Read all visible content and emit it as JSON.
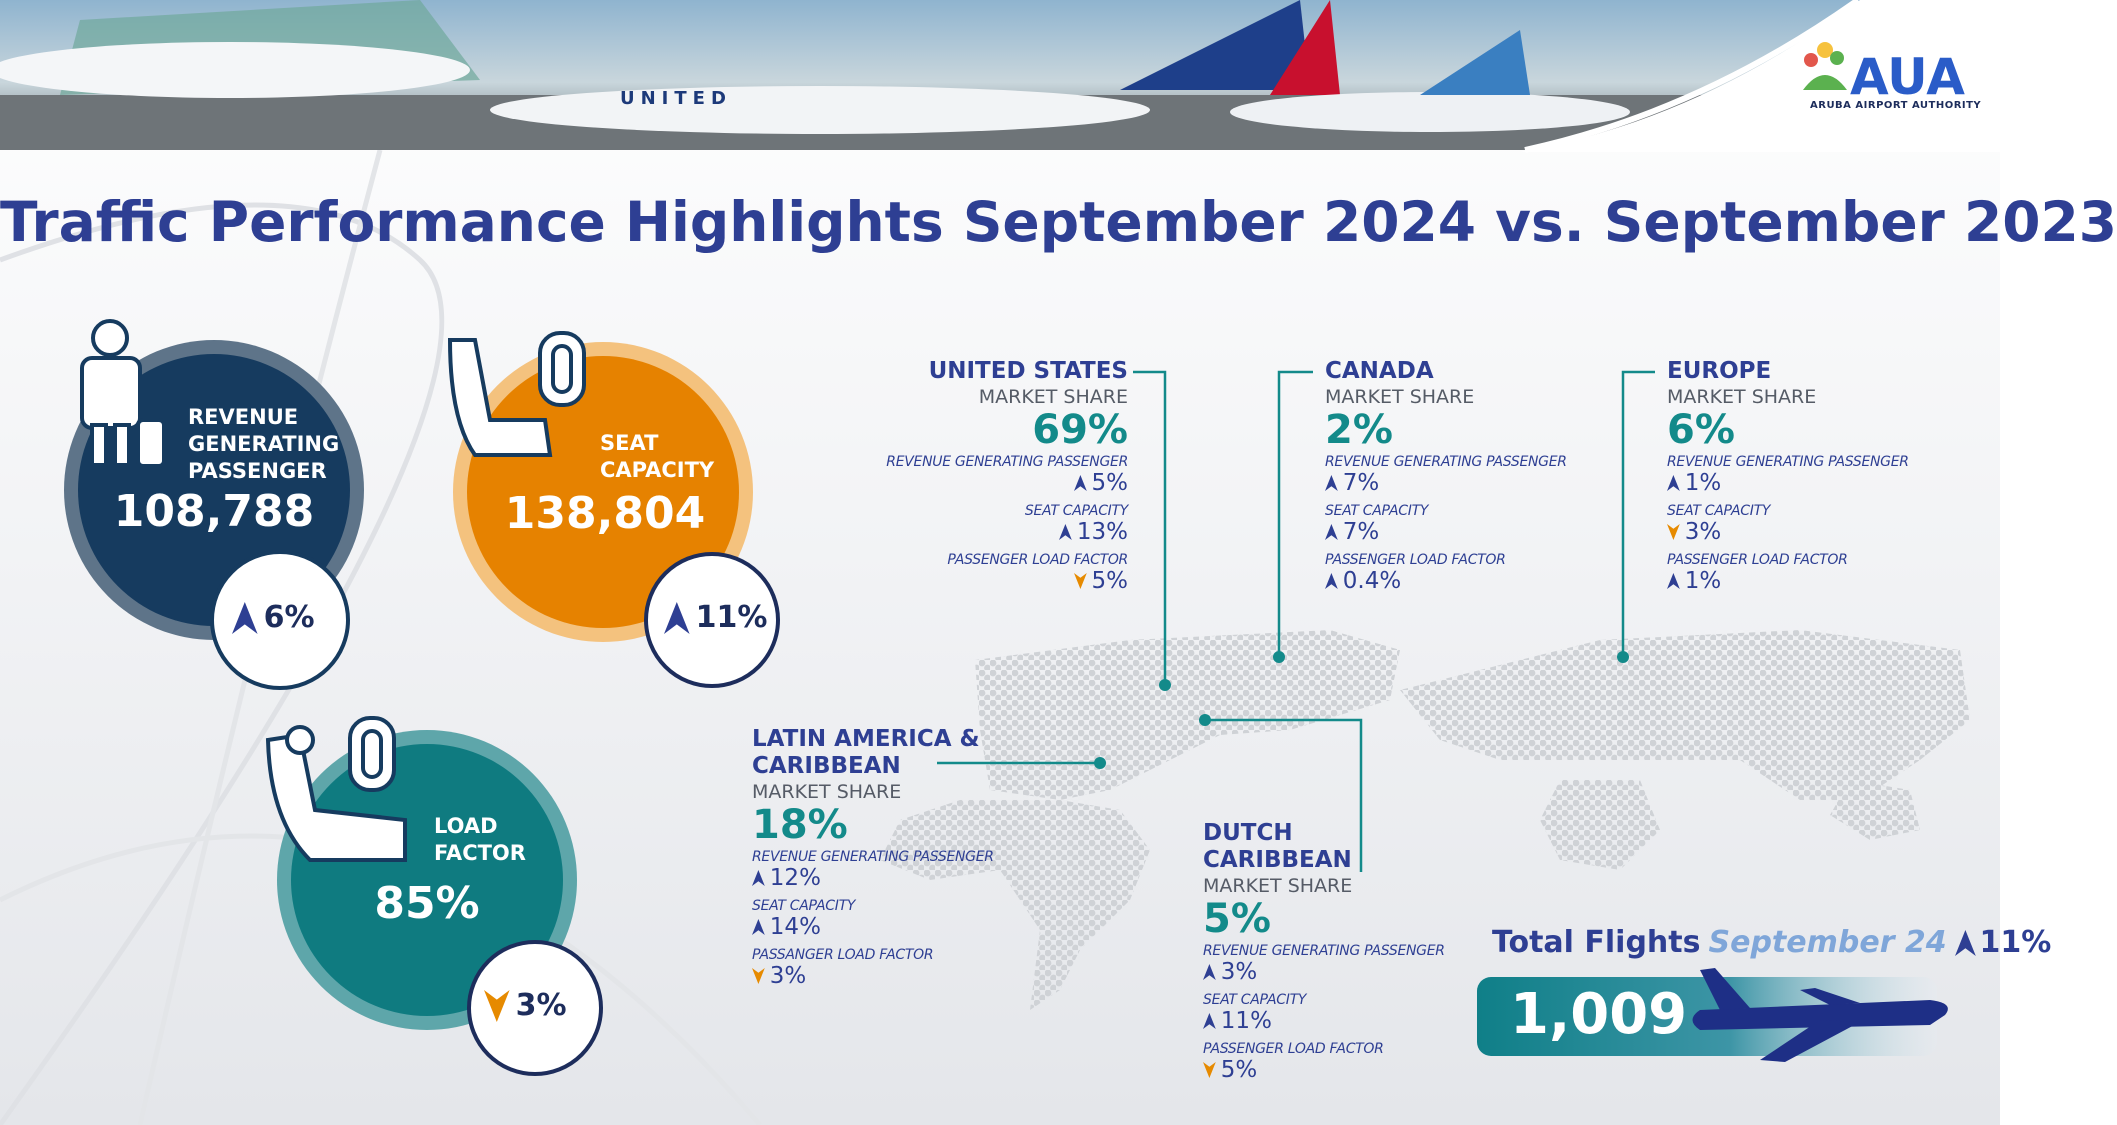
{
  "logo": {
    "name": "AUA",
    "subtitle": "ARUBA AIRPORT AUTHORITY"
  },
  "title": "Traffic Performance Highlights September 2024 vs. September 2023",
  "kpis": [
    {
      "label": "REVENUE GENERATING PASSENGER",
      "value": "108,788",
      "change": "6%",
      "direction": "up"
    },
    {
      "label": "SEAT CAPACITY",
      "value": "138,804",
      "change": "11%",
      "direction": "up"
    },
    {
      "label": "LOAD FACTOR",
      "value": "85%",
      "change": "3%",
      "direction": "down"
    }
  ],
  "regions": [
    {
      "name": "UNITED STATES",
      "share_label": "MARKET SHARE",
      "share": "69%",
      "metrics": [
        {
          "label": "REVENUE GENERATING PASSENGER",
          "change": "5%",
          "direction": "up"
        },
        {
          "label": "SEAT CAPACITY",
          "change": "13%",
          "direction": "up"
        },
        {
          "label": "PASSENGER LOAD FACTOR",
          "change": "5%",
          "direction": "down"
        }
      ]
    },
    {
      "name": "CANADA",
      "share_label": "MARKET SHARE",
      "share": "2%",
      "metrics": [
        {
          "label": "REVENUE GENERATING PASSENGER",
          "change": "7%",
          "direction": "up"
        },
        {
          "label": "SEAT CAPACITY",
          "change": "7%",
          "direction": "up"
        },
        {
          "label": "PASSENGER LOAD FACTOR",
          "change": "0.4%",
          "direction": "up"
        }
      ]
    },
    {
      "name": "EUROPE",
      "share_label": "MARKET SHARE",
      "share": "6%",
      "metrics": [
        {
          "label": "REVENUE GENERATING PASSENGER",
          "change": "1%",
          "direction": "up"
        },
        {
          "label": "SEAT CAPACITY",
          "change": "3%",
          "direction": "down"
        },
        {
          "label": "PASSENGER LOAD FACTOR",
          "change": "1%",
          "direction": "up"
        }
      ]
    },
    {
      "name": "LATIN AMERICA & CARIBBEAN",
      "share_label": "MARKET SHARE",
      "share": "18%",
      "metrics": [
        {
          "label": "REVENUE GENERATING PASSENGER",
          "change": "12%",
          "direction": "up"
        },
        {
          "label": "SEAT CAPACITY",
          "change": "14%",
          "direction": "up"
        },
        {
          "label": "PASSANGER LOAD FACTOR",
          "change": "3%",
          "direction": "down"
        }
      ]
    },
    {
      "name": "DUTCH CARIBBEAN",
      "share_label": "MARKET SHARE",
      "share": "5%",
      "metrics": [
        {
          "label": "REVENUE GENERATING PASSENGER",
          "change": "3%",
          "direction": "up"
        },
        {
          "label": "SEAT CAPACITY",
          "change": "11%",
          "direction": "up"
        },
        {
          "label": "PASSENGER LOAD FACTOR",
          "change": "5%",
          "direction": "down"
        }
      ]
    }
  ],
  "total_flights": {
    "label": "Total Flights",
    "period": "September 24",
    "change": "11%",
    "direction": "up",
    "value": "1,009"
  }
}
